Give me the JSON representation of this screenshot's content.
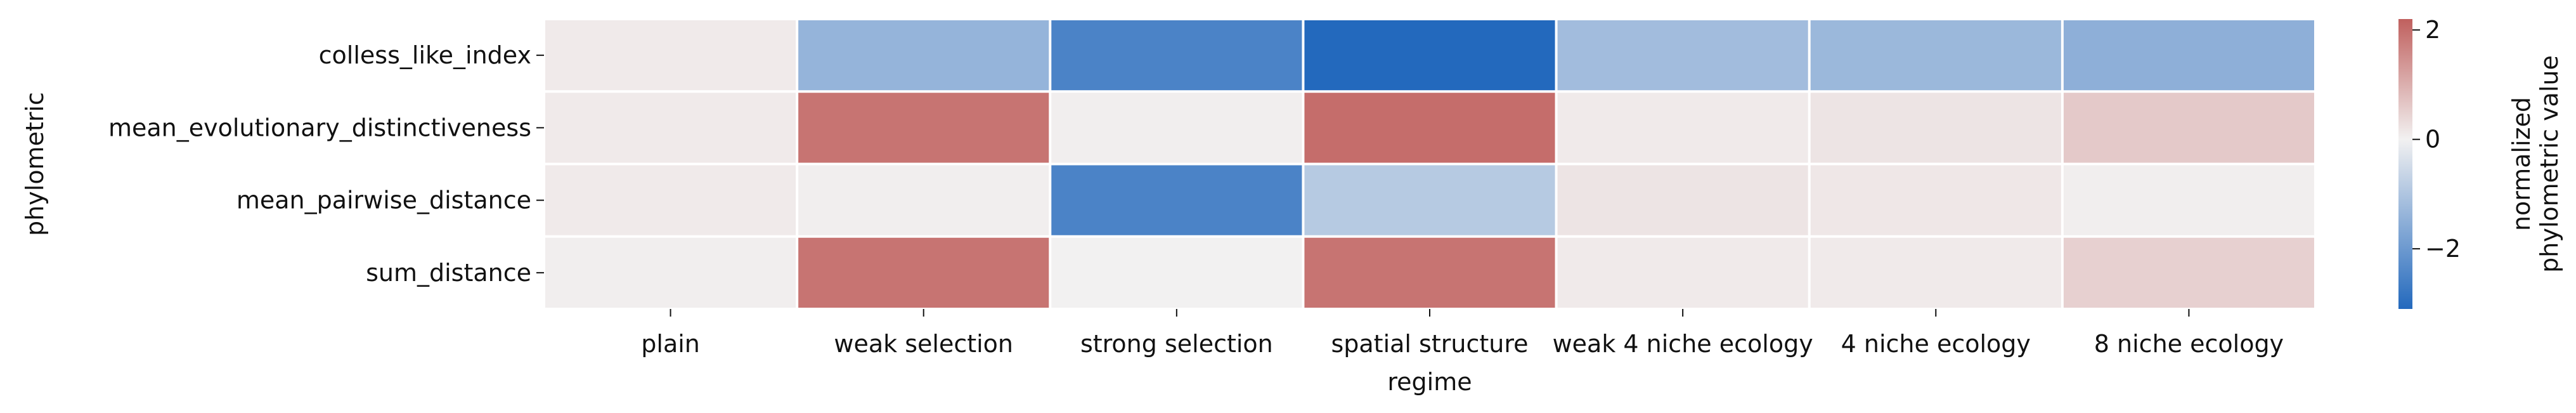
{
  "chart_data": {
    "type": "heatmap",
    "xlabel": "regime",
    "ylabel": "phylometric",
    "x_categories": [
      "plain",
      "weak selection",
      "strong selection",
      "spatial structure",
      "weak 4 niche ecology",
      "4 niche ecology",
      "8 niche ecology"
    ],
    "y_categories": [
      "colless_like_index",
      "mean_evolutionary_distinctiveness",
      "mean_pairwise_distance",
      "sum_distance"
    ],
    "values": [
      [
        0.1,
        -1.4,
        -2.5,
        -3.1,
        -1.2,
        -1.3,
        -1.5
      ],
      [
        0.1,
        1.9,
        0.05,
        2.0,
        0.1,
        0.2,
        0.6
      ],
      [
        0.1,
        0.05,
        -2.5,
        -0.9,
        0.2,
        0.15,
        0.05
      ],
      [
        0.05,
        1.9,
        0.0,
        1.9,
        0.1,
        0.1,
        0.5
      ]
    ],
    "colorbar": {
      "label_lines": [
        "normalized",
        "phylometric value"
      ],
      "ticks": [
        -2,
        0,
        2
      ],
      "vmin": -3.1,
      "vmax": 2.2,
      "low_color": "#2369bd",
      "mid_color": "#f2f1f1",
      "high_color": "#c0605e"
    },
    "grid": false,
    "cell_gap_color": "#ffffff"
  }
}
